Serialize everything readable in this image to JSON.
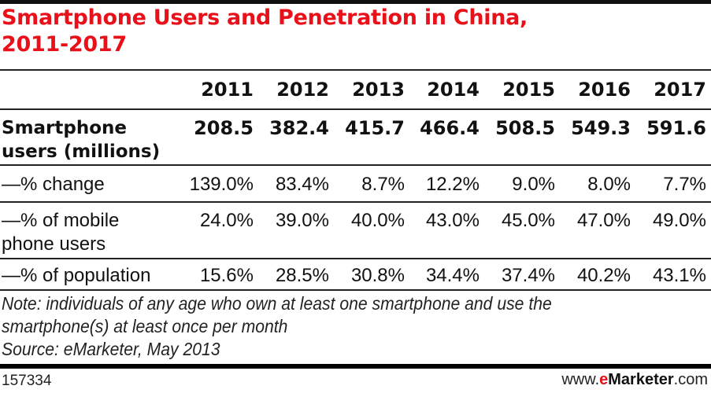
{
  "title_line1": "Smartphone Users and Penetration in China,",
  "title_line2": "2011-2017",
  "chart_data": {
    "type": "table",
    "title": "Smartphone Users and Penetration in China, 2011-2017",
    "columns": [
      "2011",
      "2012",
      "2013",
      "2014",
      "2015",
      "2016",
      "2017"
    ],
    "rows": [
      {
        "label_line1": "Smartphone",
        "label_line2": "users (millions)",
        "bold": true,
        "values": [
          "208.5",
          "382.4",
          "415.7",
          "466.4",
          "508.5",
          "549.3",
          "591.6"
        ]
      },
      {
        "label_line1": "—% change",
        "label_line2": "",
        "bold": false,
        "values": [
          "139.0%",
          "83.4%",
          "8.7%",
          "12.2%",
          "9.0%",
          "8.0%",
          "7.7%"
        ]
      },
      {
        "label_line1": "—% of mobile",
        "label_line2": "phone users",
        "bold": false,
        "values": [
          "24.0%",
          "39.0%",
          "40.0%",
          "43.0%",
          "45.0%",
          "47.0%",
          "49.0%"
        ]
      },
      {
        "label_line1": "—% of population",
        "label_line2": "",
        "bold": false,
        "values": [
          "15.6%",
          "28.5%",
          "30.8%",
          "34.4%",
          "37.4%",
          "40.2%",
          "43.1%"
        ]
      }
    ]
  },
  "note_line1": "Note: individuals of any age who own at least one smartphone and use the",
  "note_line2": "smartphone(s) at least once per month",
  "source": "Source: eMarketer, May 2013",
  "footer": {
    "id": "157334",
    "brand_prefix": "www.",
    "brand_e": "e",
    "brand_name": "Marketer",
    "brand_suffix": ".com"
  },
  "colors": {
    "accent": "#e8111a",
    "text": "#111111"
  }
}
